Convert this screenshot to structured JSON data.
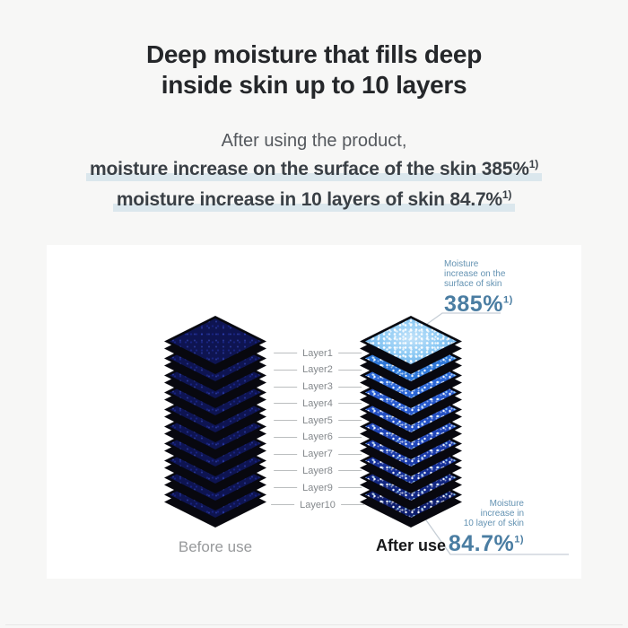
{
  "page": {
    "title_line1": "Deep moisture that fills deep",
    "title_line2": "inside skin up to 10 layers",
    "intro": "After using the product,",
    "claim1": "moisture increase on the surface of the skin 385%",
    "claim1_sup": "1)",
    "claim2": "moisture increase in 10 layers of skin 84.7%",
    "claim2_sup": "1)",
    "highlight_color": "#dbe7ed"
  },
  "diagram": {
    "before_label": "Before use",
    "after_label": "After use",
    "layers": [
      "Layer1",
      "Layer2",
      "Layer3",
      "Layer4",
      "Layer5",
      "Layer6",
      "Layer7",
      "Layer8",
      "Layer9",
      "Layer10"
    ],
    "annotation_surface": {
      "lines": [
        "Moisture",
        "increase on the",
        "surface of skin"
      ],
      "value": "385%",
      "sup": "1)"
    },
    "annotation_deep": {
      "lines": [
        "Moisture",
        "increase in",
        "10 layer of skin"
      ],
      "value": "84.7%",
      "sup": "1)"
    },
    "colors": {
      "before_face": "#0e1451",
      "after_faces": [
        "#79c0f2",
        "#2e77d8",
        "#2b66d6",
        "#2759cd",
        "#2450c4",
        "#1f45b8",
        "#1a3aa8",
        "#152f96",
        "#112682",
        "#0d1d6e"
      ],
      "edge": "#08080f",
      "accent_value_text": "#4a7da2",
      "accent_small_text": "#6392b2",
      "leader_line": "#c6ced6"
    }
  }
}
